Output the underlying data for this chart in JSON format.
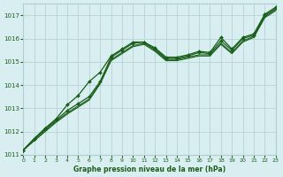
{
  "background_color": "#d8eef0",
  "grid_color": "#b0cdd0",
  "line_color": "#1a5e1a",
  "marker_color": "#1a5e1a",
  "text_color": "#1a5e1a",
  "xlabel": "Graphe pression niveau de la mer (hPa)",
  "ylim": [
    1011,
    1017.5
  ],
  "xlim": [
    0,
    23
  ],
  "yticks": [
    1011,
    1012,
    1013,
    1014,
    1015,
    1016,
    1017
  ],
  "xticks": [
    0,
    1,
    2,
    3,
    4,
    5,
    6,
    7,
    8,
    9,
    10,
    11,
    12,
    13,
    14,
    15,
    16,
    17,
    18,
    19,
    20,
    21,
    22,
    23
  ],
  "series1": {
    "x": [
      0,
      1,
      2,
      3,
      4,
      5,
      6,
      7,
      8,
      9,
      10,
      11,
      12,
      13,
      14,
      15,
      16,
      17,
      18,
      19,
      20,
      21,
      22,
      23
    ],
    "y": [
      1011.2,
      1011.7,
      1012.1,
      1012.5,
      1012.9,
      1013.2,
      1013.5,
      1014.15,
      1015.2,
      1015.5,
      1015.8,
      1015.85,
      1015.55,
      1015.15,
      1015.15,
      1015.25,
      1015.4,
      1015.35,
      1015.9,
      1015.5,
      1016.0,
      1016.15,
      1017.0,
      1017.3
    ]
  },
  "series2": {
    "x": [
      0,
      1,
      2,
      3,
      4,
      5,
      6,
      7,
      8,
      9,
      10,
      11,
      12,
      13,
      14,
      15,
      16,
      17,
      18,
      19,
      20,
      21,
      22,
      23
    ],
    "y": [
      1011.2,
      1011.65,
      1012.05,
      1012.45,
      1012.8,
      1013.1,
      1013.4,
      1014.1,
      1015.1,
      1015.4,
      1015.7,
      1015.8,
      1015.5,
      1015.1,
      1015.1,
      1015.2,
      1015.3,
      1015.3,
      1015.8,
      1015.4,
      1015.9,
      1016.1,
      1016.95,
      1017.25
    ]
  },
  "series3": {
    "x": [
      0,
      1,
      2,
      3,
      4,
      5,
      6,
      7,
      8,
      9,
      10,
      11,
      12,
      13,
      14,
      15,
      16,
      17,
      18,
      19,
      20,
      21,
      22,
      23
    ],
    "y": [
      1011.2,
      1011.6,
      1012.0,
      1012.4,
      1012.75,
      1013.05,
      1013.35,
      1014.05,
      1015.05,
      1015.35,
      1015.65,
      1015.75,
      1015.45,
      1015.05,
      1015.05,
      1015.15,
      1015.25,
      1015.25,
      1015.75,
      1015.35,
      1015.85,
      1016.05,
      1016.9,
      1017.2
    ]
  },
  "series_marker": {
    "x": [
      0,
      1,
      2,
      3,
      4,
      5,
      6,
      7,
      8,
      9,
      10,
      11,
      12,
      13,
      14,
      15,
      16,
      17,
      18,
      19,
      20,
      21,
      22,
      23
    ],
    "y": [
      1011.2,
      1011.7,
      1012.15,
      1012.55,
      1013.15,
      1013.55,
      1014.15,
      1014.55,
      1015.25,
      1015.55,
      1015.85,
      1015.85,
      1015.6,
      1015.2,
      1015.2,
      1015.3,
      1015.45,
      1015.4,
      1016.05,
      1015.55,
      1016.05,
      1016.2,
      1017.05,
      1017.35
    ]
  }
}
